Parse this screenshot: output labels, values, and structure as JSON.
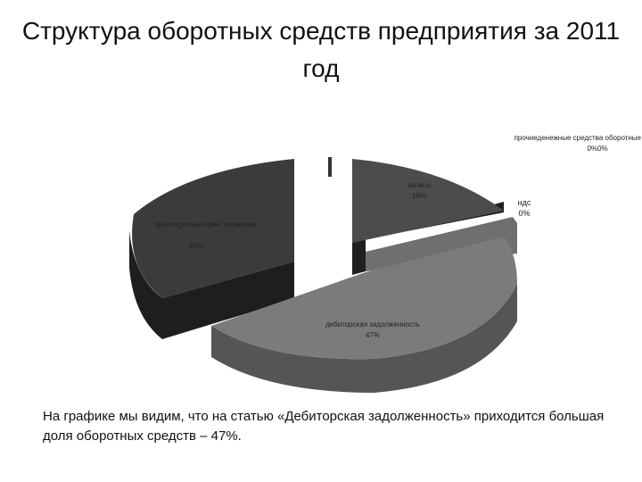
{
  "title": "Структура оборотных средств предприятия за 2011 год",
  "chart_data": {
    "type": "pie",
    "title": "",
    "slices": [
      {
        "label": "запасы",
        "value_label": "18%",
        "value": 18,
        "color": "#4b4b4b"
      },
      {
        "label": "ндс",
        "value_label": "0%",
        "value": 0,
        "color": "#707070"
      },
      {
        "label": "дебиторская задолженность",
        "value_label": "47%",
        "value": 47,
        "color": "#7a7a7a"
      },
      {
        "label": "краткосрочные фин. вложения",
        "value_label": "35%",
        "value": 35,
        "color": "#3a3a3a"
      },
      {
        "label": "денежные средства",
        "value_label": "0%",
        "value": 0,
        "color": "#909090"
      },
      {
        "label": "прочие оборотные активы",
        "value_label": "0%",
        "value": 0,
        "color": "#a0a0a0"
      }
    ],
    "overlapping_label_line1": "прочиеденежные средства оборотные активы",
    "overlapping_label_line2": "0%0%"
  },
  "caption": "На графике мы видим, что на статью «Дебиторская задолженность» приходится большая доля оборотных средств – 47%."
}
